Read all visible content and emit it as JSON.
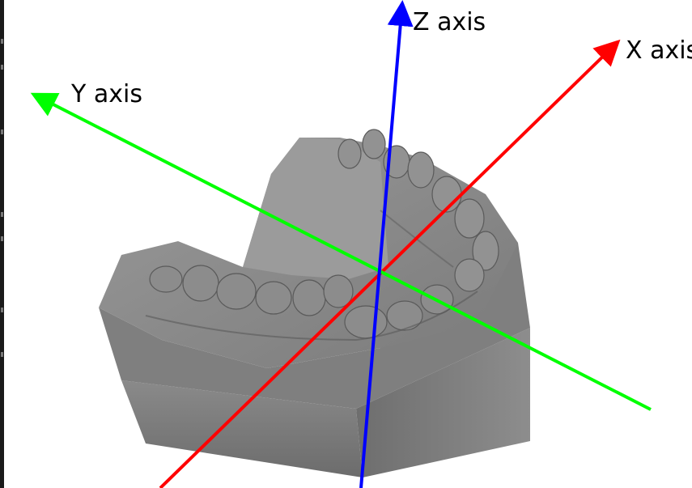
{
  "axes": {
    "x": {
      "label": "X axis",
      "color": "#ff0000"
    },
    "y": {
      "label": "Y axis",
      "color": "#00ff00"
    },
    "z": {
      "label": "Z axis",
      "color": "#0000ff"
    }
  },
  "model": {
    "name": "dental-arch-model",
    "base_color": "#808080",
    "shadow_color": "#5a5a5a",
    "highlight_color": "#a5a5a5"
  },
  "colors": {
    "background": "#ffffff",
    "left_strip": "#1a1a1a"
  }
}
